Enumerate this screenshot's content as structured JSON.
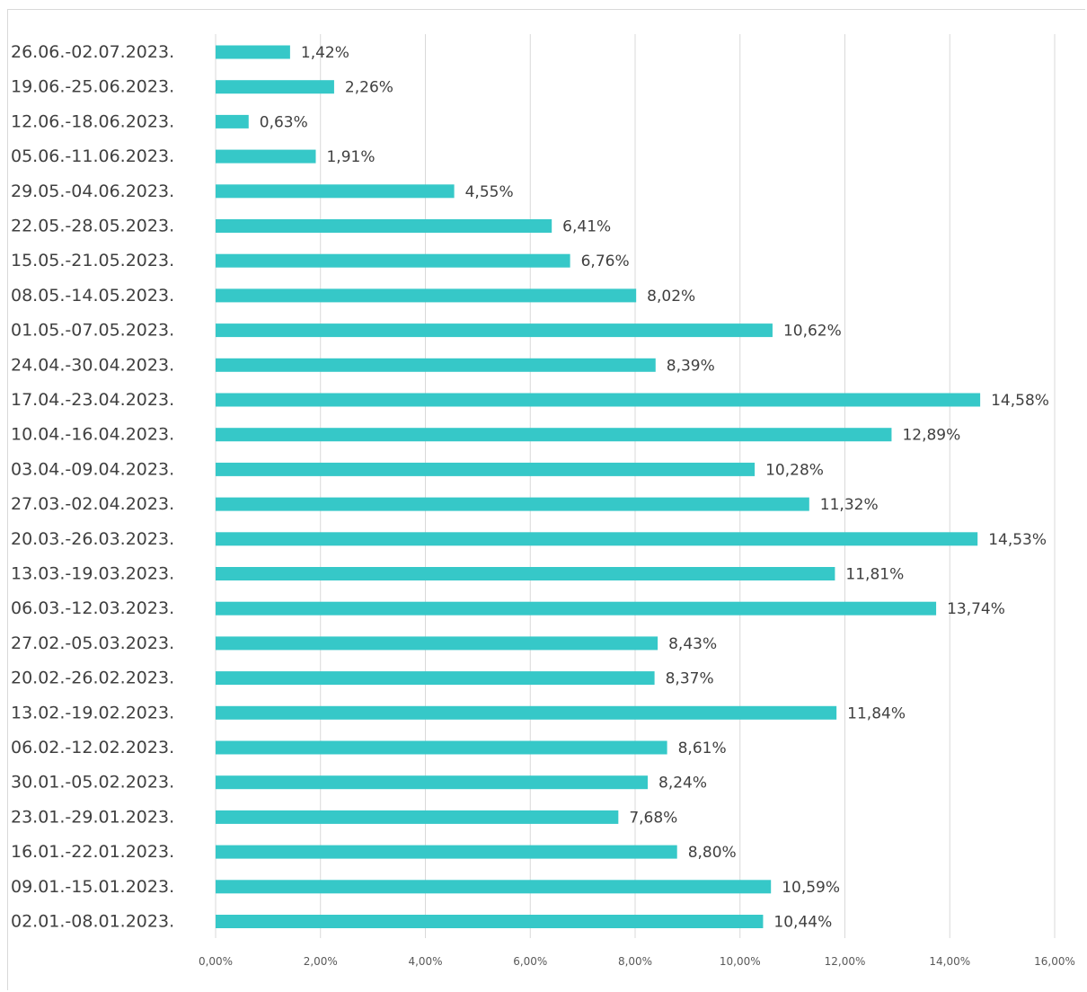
{
  "chart_data": {
    "type": "bar",
    "orientation": "horizontal",
    "title": "",
    "xlabel": "",
    "ylabel": "",
    "xlim": [
      0,
      16
    ],
    "grid": true,
    "legend": "none",
    "bar_color": "#36c8c8",
    "categories": [
      "26.06.-02.07.2023.",
      "19.06.-25.06.2023.",
      "12.06.-18.06.2023.",
      "05.06.-11.06.2023.",
      "29.05.-04.06.2023.",
      "22.05.-28.05.2023.",
      "15.05.-21.05.2023.",
      "08.05.-14.05.2023.",
      "01.05.-07.05.2023.",
      "24.04.-30.04.2023.",
      "17.04.-23.04.2023.",
      "10.04.-16.04.2023.",
      "03.04.-09.04.2023.",
      "27.03.-02.04.2023.",
      "20.03.-26.03.2023.",
      "13.03.-19.03.2023.",
      "06.03.-12.03.2023.",
      "27.02.-05.03.2023.",
      "20.02.-26.02.2023.",
      "13.02.-19.02.2023.",
      "06.02.-12.02.2023.",
      "30.01.-05.02.2023.",
      "23.01.-29.01.2023.",
      "16.01.-22.01.2023.",
      "09.01.-15.01.2023.",
      "02.01.-08.01.2023."
    ],
    "values": [
      1.42,
      2.26,
      0.63,
      1.91,
      4.55,
      6.41,
      6.76,
      8.02,
      10.62,
      8.39,
      14.58,
      12.89,
      10.28,
      11.32,
      14.53,
      11.81,
      13.74,
      8.43,
      8.37,
      11.84,
      8.61,
      8.24,
      7.68,
      8.8,
      10.59,
      10.44
    ],
    "data_labels": [
      "1,42%",
      "2,26%",
      "0,63%",
      "1,91%",
      "4,55%",
      "6,41%",
      "6,76%",
      "8,02%",
      "10,62%",
      "8,39%",
      "14,58%",
      "12,89%",
      "10,28%",
      "11,32%",
      "14,53%",
      "11,81%",
      "13,74%",
      "8,43%",
      "8,37%",
      "11,84%",
      "8,61%",
      "8,24%",
      "7,68%",
      "8,80%",
      "10,59%",
      "10,44%"
    ],
    "x_ticks": [
      0,
      2,
      4,
      6,
      8,
      10,
      12,
      14,
      16
    ],
    "x_tick_labels": [
      "0,00%",
      "2,00%",
      "4,00%",
      "6,00%",
      "8,00%",
      "10,00%",
      "12,00%",
      "14,00%",
      "16,00%"
    ]
  }
}
